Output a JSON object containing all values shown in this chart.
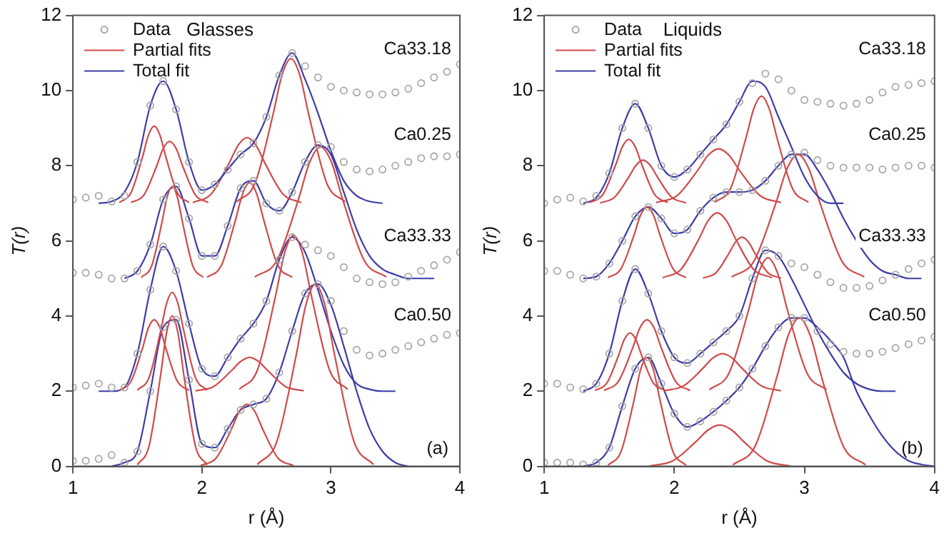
{
  "chart_data": [
    {
      "type": "line",
      "title": "Glasses",
      "xlabel": "r (Å)",
      "ylabel": "T(r)",
      "xlim": [
        1,
        4
      ],
      "xticks": [
        1,
        2,
        3,
        4
      ],
      "ylim": [
        0,
        12
      ],
      "yticks": [
        0,
        2,
        4,
        6,
        8,
        10,
        12
      ],
      "legend": "top left",
      "line_style": "solid",
      "annotations": [
        "Ca33.18",
        "Ca0.25",
        "Ca33.33",
        "Ca0.50",
        "(a)"
      ],
      "x": [
        1,
        1.1,
        1.2,
        1.3,
        1.4,
        1.5,
        1.6,
        1.7,
        1.8,
        1.9,
        2,
        2.1,
        2.2,
        2.3,
        2.4,
        2.5,
        2.6,
        2.7,
        2.8,
        2.9,
        3,
        3.1,
        3.2,
        3.3,
        3.4,
        3.5,
        3.6,
        3.7,
        3.8,
        3.9,
        4
      ],
      "series": [
        {
          "type": "scatter",
          "name": "Data",
          "color": "#a8a8a8",
          "marker": "circle",
          "values": [
            7.1,
            7.15,
            7.2,
            7.05,
            7.2,
            8.1,
            9.6,
            10.25,
            9.5,
            8.1,
            7.35,
            7.5,
            7.9,
            8.3,
            8.6,
            9.3,
            10.4,
            11.0,
            10.65,
            10.35,
            10.1,
            10.0,
            9.95,
            9.9,
            9.9,
            9.95,
            10.05,
            10.2,
            10.35,
            10.5,
            10.7
          ]
        },
        {
          "type": "scatter",
          "color": "#a8a8a8",
          "marker": "circle",
          "values": [
            5.15,
            5.15,
            5.1,
            5.0,
            5.0,
            5.2,
            5.9,
            7.1,
            7.45,
            6.6,
            5.6,
            5.6,
            6.4,
            7.4,
            7.6,
            7.0,
            6.8,
            7.3,
            8.1,
            8.55,
            8.5,
            8.1,
            7.9,
            7.85,
            7.9,
            8.0,
            8.1,
            8.2,
            8.25,
            8.25,
            8.3
          ]
        },
        {
          "type": "scatter",
          "color": "#a8a8a8",
          "marker": "circle",
          "values": [
            2.1,
            2.15,
            2.2,
            2.1,
            2.1,
            3.0,
            4.7,
            5.85,
            5.2,
            3.8,
            2.6,
            2.4,
            2.9,
            3.4,
            3.8,
            4.4,
            5.5,
            6.1,
            5.9,
            5.75,
            5.6,
            5.3,
            5.0,
            4.9,
            4.85,
            4.9,
            5.05,
            5.2,
            5.35,
            5.5,
            5.7
          ]
        },
        {
          "type": "scatter",
          "color": "#a8a8a8",
          "marker": "circle",
          "values": [
            0.15,
            0.15,
            0.2,
            0.3,
            0.1,
            0.4,
            2.0,
            3.7,
            3.9,
            2.3,
            0.6,
            0.5,
            1.0,
            1.5,
            1.65,
            1.8,
            2.5,
            3.6,
            4.6,
            4.85,
            4.4,
            3.6,
            3.1,
            2.95,
            3.0,
            3.1,
            3.2,
            3.3,
            3.4,
            3.5,
            3.55
          ]
        },
        {
          "type": "line",
          "name": "Partial fits",
          "color": "#d04a4a",
          "x": [
            1.36,
            1.45,
            1.54,
            1.585,
            1.63,
            1.675,
            1.72,
            1.81,
            1.9
          ],
          "values": [
            7.02,
            7.28,
            8.24,
            8.81,
            9.05,
            8.81,
            8.24,
            7.28,
            7.02
          ]
        },
        {
          "type": "line",
          "color": "#d04a4a",
          "x": [
            1.45,
            1.55,
            1.65,
            1.7,
            1.75,
            1.8,
            1.85,
            1.95,
            2.05
          ],
          "values": [
            7.02,
            7.22,
            8.0,
            8.46,
            8.65,
            8.46,
            8.0,
            7.22,
            7.02
          ]
        },
        {
          "type": "line",
          "color": "#d04a4a",
          "x": [
            1.93,
            2.07,
            2.21,
            2.28,
            2.35,
            2.42,
            2.49,
            2.63,
            2.77
          ],
          "values": [
            7.02,
            7.24,
            8.06,
            8.54,
            8.75,
            8.54,
            8.06,
            7.24,
            7.02
          ]
        },
        {
          "type": "line",
          "color": "#d04a4a",
          "x": [
            2.27,
            2.41,
            2.55,
            2.62,
            2.69,
            2.76,
            2.83,
            2.97,
            3.11
          ],
          "values": [
            7.04,
            7.52,
            9.34,
            10.4,
            10.85,
            10.4,
            9.34,
            7.52,
            7.04
          ]
        },
        {
          "type": "line",
          "color": "#d04a4a",
          "x": [
            1.53,
            1.61,
            1.69,
            1.73,
            1.77,
            1.81,
            1.85,
            1.93,
            2.01
          ],
          "values": [
            5.03,
            5.33,
            6.49,
            7.16,
            7.45,
            7.16,
            6.49,
            5.33,
            5.03
          ]
        },
        {
          "type": "line",
          "color": "#d04a4a",
          "x": [
            2.04,
            2.15,
            2.26,
            2.315,
            2.37,
            2.425,
            2.48,
            2.59,
            2.7
          ],
          "values": [
            5.03,
            5.34,
            6.55,
            7.25,
            7.55,
            7.25,
            6.55,
            5.34,
            5.03
          ]
        },
        {
          "type": "line",
          "color": "#d04a4a",
          "x": [
            2.41,
            2.58,
            2.75,
            2.835,
            2.92,
            3.005,
            3.09,
            3.26,
            3.43
          ],
          "values": [
            5.04,
            5.47,
            7.12,
            8.09,
            8.5,
            8.09,
            7.12,
            5.47,
            5.04
          ]
        },
        {
          "type": "line",
          "color": "#d04a4a",
          "x": [
            1.36,
            1.45,
            1.54,
            1.585,
            1.63,
            1.675,
            1.72,
            1.81,
            1.9
          ],
          "values": [
            2.02,
            2.26,
            3.15,
            3.68,
            3.9,
            3.68,
            3.15,
            2.26,
            2.02
          ]
        },
        {
          "type": "line",
          "color": "#d04a4a",
          "x": [
            1.5,
            1.59,
            1.68,
            1.725,
            1.77,
            1.815,
            1.86,
            1.95,
            2.04
          ],
          "values": [
            2.03,
            2.36,
            3.6,
            4.32,
            4.63,
            4.32,
            3.6,
            2.36,
            2.03
          ]
        },
        {
          "type": "line",
          "color": "#d04a4a",
          "x": [
            1.95,
            2.09,
            2.23,
            2.3,
            2.37,
            2.44,
            2.51,
            2.65,
            2.79
          ],
          "values": [
            2.01,
            2.12,
            2.55,
            2.79,
            2.9,
            2.79,
            2.55,
            2.12,
            2.01
          ]
        },
        {
          "type": "line",
          "color": "#d04a4a",
          "x": [
            2.29,
            2.43,
            2.57,
            2.64,
            2.71,
            2.78,
            2.85,
            2.99,
            3.13
          ],
          "values": [
            2.05,
            2.56,
            4.52,
            5.66,
            6.15,
            5.66,
            4.52,
            2.56,
            2.05
          ]
        },
        {
          "type": "line",
          "color": "#d04a4a",
          "x": [
            1.5,
            1.59,
            1.68,
            1.725,
            1.77,
            1.815,
            1.86,
            1.95,
            2.04
          ],
          "values": [
            0.04,
            0.54,
            2.43,
            3.53,
            4.0,
            3.53,
            2.43,
            0.54,
            0.04
          ]
        },
        {
          "type": "line",
          "color": "#d04a4a",
          "x": [
            1.99,
            2.11,
            2.23,
            2.29,
            2.35,
            2.41,
            2.47,
            2.59,
            2.71
          ],
          "values": [
            0.02,
            0.22,
            1.0,
            1.46,
            1.65,
            1.46,
            1.0,
            0.22,
            0.02
          ]
        },
        {
          "type": "line",
          "color": "#d04a4a",
          "x": [
            2.43,
            2.58,
            2.73,
            2.805,
            2.88,
            2.955,
            3.03,
            3.18,
            3.33
          ],
          "values": [
            0.05,
            0.65,
            2.94,
            4.28,
            4.85,
            4.28,
            2.94,
            0.65,
            0.05
          ]
        },
        {
          "type": "line",
          "name": "Total fit",
          "color": "#3c3ca8",
          "x": [
            1.2,
            1.3,
            1.4,
            1.5,
            1.6,
            1.7,
            1.8,
            1.9,
            2,
            2.1,
            2.2,
            2.3,
            2.4,
            2.5,
            2.6,
            2.7,
            2.8,
            2.9,
            3,
            3.1,
            3.2,
            3.3,
            3.4
          ],
          "values": [
            7.0,
            7.05,
            7.3,
            8.1,
            9.6,
            10.25,
            9.5,
            8.1,
            7.35,
            7.5,
            7.9,
            8.3,
            8.6,
            9.3,
            10.4,
            11.0,
            10.3,
            9.4,
            8.4,
            7.6,
            7.2,
            7.05,
            7.0
          ]
        },
        {
          "type": "line",
          "color": "#3c3ca8",
          "x": [
            1.4,
            1.5,
            1.6,
            1.7,
            1.8,
            1.9,
            2,
            2.1,
            2.2,
            2.3,
            2.4,
            2.5,
            2.6,
            2.7,
            2.8,
            2.9,
            3,
            3.1,
            3.2,
            3.3,
            3.4,
            3.5,
            3.6,
            3.7,
            3.8
          ],
          "values": [
            5.0,
            5.2,
            5.9,
            7.1,
            7.45,
            6.6,
            5.6,
            5.6,
            6.4,
            7.4,
            7.6,
            7.0,
            6.8,
            7.3,
            8.1,
            8.55,
            8.3,
            7.3,
            6.3,
            5.6,
            5.25,
            5.1,
            5.0,
            5.0,
            5.0
          ]
        },
        {
          "type": "line",
          "color": "#3c3ca8",
          "x": [
            1.2,
            1.3,
            1.4,
            1.5,
            1.6,
            1.7,
            1.8,
            1.9,
            2,
            2.1,
            2.2,
            2.3,
            2.4,
            2.5,
            2.6,
            2.7,
            2.8,
            2.9,
            3,
            3.1,
            3.2,
            3.3,
            3.4,
            3.5
          ],
          "values": [
            2.0,
            2.0,
            2.1,
            3.0,
            4.7,
            5.85,
            5.2,
            3.8,
            2.6,
            2.4,
            2.9,
            3.4,
            3.8,
            4.4,
            5.5,
            6.1,
            5.7,
            4.7,
            3.6,
            2.7,
            2.2,
            2.05,
            2.0,
            2.0
          ]
        },
        {
          "type": "line",
          "color": "#3c3ca8",
          "x": [
            1.3,
            1.4,
            1.5,
            1.6,
            1.7,
            1.8,
            1.9,
            2,
            2.1,
            2.2,
            2.3,
            2.4,
            2.5,
            2.6,
            2.7,
            2.8,
            2.9,
            3,
            3.1,
            3.2,
            3.3,
            3.4,
            3.5,
            3.6
          ],
          "values": [
            0.0,
            0.1,
            0.4,
            2.0,
            3.7,
            3.9,
            2.3,
            0.6,
            0.5,
            1.0,
            1.5,
            1.65,
            1.8,
            2.5,
            3.6,
            4.6,
            4.85,
            4.3,
            3.2,
            2.0,
            1.0,
            0.4,
            0.1,
            0.0
          ]
        }
      ]
    },
    {
      "type": "line",
      "title": "Liquids",
      "xlabel": "r (Å)",
      "ylabel": "T(r)",
      "xlim": [
        1,
        4
      ],
      "xticks": [
        1,
        2,
        3,
        4
      ],
      "ylim": [
        0,
        12
      ],
      "yticks": [
        0,
        2,
        4,
        6,
        8,
        10,
        12
      ],
      "legend": "top left",
      "line_style": "solid",
      "annotations": [
        "Ca33.18",
        "Ca0.25",
        "Ca33.33",
        "Ca0.50",
        "(b)"
      ],
      "x": [
        1,
        1.1,
        1.2,
        1.3,
        1.4,
        1.5,
        1.6,
        1.7,
        1.8,
        1.9,
        2,
        2.1,
        2.2,
        2.3,
        2.4,
        2.5,
        2.6,
        2.7,
        2.8,
        2.9,
        3,
        3.1,
        3.2,
        3.3,
        3.4,
        3.5,
        3.6,
        3.7,
        3.8,
        3.9,
        4
      ],
      "series": [
        {
          "type": "scatter",
          "name": "Data",
          "color": "#a8a8a8",
          "marker": "circle",
          "values": [
            7.0,
            7.1,
            7.15,
            7.05,
            7.2,
            7.8,
            9.0,
            9.65,
            9.0,
            8.0,
            7.7,
            7.9,
            8.3,
            8.7,
            9.1,
            9.7,
            10.2,
            10.45,
            10.3,
            10.0,
            9.75,
            9.7,
            9.65,
            9.6,
            9.65,
            9.75,
            9.95,
            10.1,
            10.15,
            10.2,
            10.25
          ]
        },
        {
          "type": "scatter",
          "color": "#a8a8a8",
          "marker": "circle",
          "values": [
            5.2,
            5.2,
            5.1,
            5.0,
            5.05,
            5.4,
            6.0,
            6.65,
            6.9,
            6.6,
            6.2,
            6.3,
            6.8,
            7.15,
            7.3,
            7.3,
            7.35,
            7.6,
            8.0,
            8.3,
            8.35,
            8.15,
            8.0,
            7.95,
            7.95,
            7.95,
            7.9,
            7.95,
            8.0,
            8.0,
            7.95
          ]
        },
        {
          "type": "scatter",
          "color": "#a8a8a8",
          "marker": "circle",
          "values": [
            2.2,
            2.2,
            2.1,
            2.05,
            2.2,
            3.0,
            4.4,
            5.25,
            4.6,
            3.6,
            2.9,
            2.75,
            3.0,
            3.3,
            3.6,
            4.0,
            5.0,
            5.75,
            5.6,
            5.4,
            5.3,
            5.1,
            4.9,
            4.75,
            4.75,
            4.8,
            4.95,
            5.1,
            5.25,
            5.4,
            5.5
          ]
        },
        {
          "type": "scatter",
          "color": "#a8a8a8",
          "marker": "circle",
          "values": [
            0.1,
            0.1,
            0.1,
            0.05,
            0.1,
            0.5,
            1.6,
            2.6,
            2.9,
            2.2,
            1.4,
            1.05,
            1.2,
            1.45,
            1.75,
            2.1,
            2.6,
            3.2,
            3.7,
            3.95,
            3.95,
            3.6,
            3.25,
            3.05,
            3.0,
            3.0,
            3.05,
            3.15,
            3.25,
            3.35,
            3.45
          ]
        },
        {
          "type": "line",
          "name": "Partial fits",
          "color": "#d04a4a",
          "x": [
            1.35,
            1.45,
            1.55,
            1.6,
            1.65,
            1.7,
            1.75,
            1.85,
            1.95
          ],
          "values": [
            7.02,
            7.23,
            8.03,
            8.5,
            8.7,
            8.5,
            8.03,
            7.23,
            7.02
          ]
        },
        {
          "type": "line",
          "color": "#d04a4a",
          "x": [
            1.43,
            1.54,
            1.65,
            1.705,
            1.76,
            1.815,
            1.87,
            1.98,
            2.09
          ],
          "values": [
            7.01,
            7.16,
            7.7,
            8.01,
            8.15,
            8.01,
            7.7,
            7.16,
            7.01
          ]
        },
        {
          "type": "line",
          "color": "#d04a4a",
          "x": [
            1.86,
            2.02,
            2.18,
            2.26,
            2.34,
            2.42,
            2.5,
            2.66,
            2.82
          ],
          "values": [
            7.02,
            7.2,
            7.88,
            8.28,
            8.45,
            8.28,
            7.88,
            7.2,
            7.02
          ]
        },
        {
          "type": "line",
          "color": "#d04a4a",
          "x": [
            2.31,
            2.43,
            2.55,
            2.61,
            2.67,
            2.73,
            2.79,
            2.91,
            3.03
          ],
          "values": [
            7.03,
            7.38,
            8.73,
            9.51,
            9.85,
            9.51,
            8.73,
            7.38,
            7.03
          ]
        },
        {
          "type": "line",
          "color": "#d04a4a",
          "x": [
            1.49,
            1.59,
            1.69,
            1.74,
            1.79,
            1.84,
            1.89,
            1.99,
            2.09
          ],
          "values": [
            5.02,
            5.26,
            6.15,
            6.68,
            6.9,
            6.68,
            6.15,
            5.26,
            5.02
          ]
        },
        {
          "type": "line",
          "color": "#d04a4a",
          "x": [
            1.91,
            2.05,
            2.19,
            2.26,
            2.33,
            2.4,
            2.47,
            2.61,
            2.75
          ],
          "values": [
            5.02,
            5.24,
            6.06,
            6.54,
            6.75,
            6.54,
            6.06,
            5.24,
            5.02
          ]
        },
        {
          "type": "line",
          "color": "#d04a4a",
          "x": [
            2.22,
            2.32,
            2.42,
            2.47,
            2.52,
            2.57,
            2.62,
            2.72,
            2.82
          ],
          "values": [
            5.01,
            5.15,
            5.67,
            5.97,
            6.1,
            5.97,
            5.67,
            5.15,
            5.01
          ]
        },
        {
          "type": "line",
          "color": "#d04a4a",
          "x": [
            2.44,
            2.61,
            2.78,
            2.865,
            2.95,
            3.035,
            3.12,
            3.29,
            3.46
          ],
          "values": [
            5.04,
            5.45,
            7.0,
            7.91,
            8.3,
            7.91,
            7.0,
            5.45,
            5.04
          ]
        },
        {
          "type": "line",
          "color": "#d04a4a",
          "x": [
            1.39,
            1.48,
            1.57,
            1.615,
            1.66,
            1.705,
            1.75,
            1.84,
            1.93
          ],
          "values": [
            2.02,
            2.21,
            2.94,
            3.37,
            3.55,
            3.37,
            2.94,
            2.21,
            2.02
          ]
        },
        {
          "type": "line",
          "color": "#d04a4a",
          "x": [
            1.46,
            1.57,
            1.68,
            1.735,
            1.79,
            1.845,
            1.9,
            2.01,
            2.12
          ],
          "values": [
            2.02,
            2.26,
            3.15,
            3.68,
            3.9,
            3.68,
            3.15,
            2.26,
            2.02
          ]
        },
        {
          "type": "line",
          "color": "#d04a4a",
          "x": [
            1.92,
            2.07,
            2.22,
            2.295,
            2.37,
            2.445,
            2.52,
            2.67,
            2.82
          ],
          "values": [
            2.01,
            2.14,
            2.61,
            2.88,
            3.0,
            2.88,
            2.61,
            2.14,
            2.01
          ]
        },
        {
          "type": "line",
          "color": "#d04a4a",
          "x": [
            2.27,
            2.42,
            2.57,
            2.645,
            2.72,
            2.795,
            2.87,
            3.02,
            3.17
          ],
          "values": [
            2.04,
            2.48,
            4.15,
            5.13,
            5.55,
            5.13,
            4.15,
            2.48,
            2.04
          ]
        },
        {
          "type": "line",
          "color": "#d04a4a",
          "x": [
            1.49,
            1.59,
            1.69,
            1.74,
            1.79,
            1.84,
            1.89,
            1.99,
            2.09
          ],
          "values": [
            0.03,
            0.39,
            1.76,
            2.56,
            2.9,
            2.56,
            1.76,
            0.39,
            0.03
          ]
        },
        {
          "type": "line",
          "color": "#d04a4a",
          "x": [
            1.81,
            1.99,
            2.17,
            2.26,
            2.35,
            2.44,
            2.53,
            2.71,
            2.89
          ],
          "values": [
            0.01,
            0.15,
            0.67,
            0.97,
            1.1,
            0.97,
            0.67,
            0.15,
            0.01
          ]
        },
        {
          "type": "line",
          "color": "#d04a4a",
          "x": [
            2.45,
            2.62,
            2.79,
            2.875,
            2.96,
            3.045,
            3.13,
            3.3,
            3.47
          ],
          "values": [
            0.04,
            0.53,
            2.4,
            3.48,
            3.95,
            3.48,
            2.4,
            0.53,
            0.04
          ]
        },
        {
          "type": "line",
          "name": "Total fit",
          "color": "#3c3ca8",
          "x": [
            1.3,
            1.4,
            1.5,
            1.6,
            1.7,
            1.8,
            1.9,
            2,
            2.1,
            2.2,
            2.3,
            2.4,
            2.5,
            2.6,
            2.7,
            2.8,
            2.9,
            3,
            3.1,
            3.2,
            3.3
          ],
          "values": [
            7.0,
            7.15,
            7.8,
            9.0,
            9.65,
            9.0,
            8.0,
            7.7,
            7.9,
            8.3,
            8.7,
            9.1,
            9.7,
            10.25,
            10.1,
            9.3,
            8.5,
            7.7,
            7.2,
            7.0,
            7.0
          ]
        },
        {
          "type": "line",
          "color": "#3c3ca8",
          "x": [
            1.3,
            1.4,
            1.5,
            1.6,
            1.7,
            1.8,
            1.9,
            2,
            2.1,
            2.2,
            2.3,
            2.4,
            2.5,
            2.6,
            2.7,
            2.8,
            2.9,
            3,
            3.1,
            3.2,
            3.3,
            3.4,
            3.5,
            3.6,
            3.7,
            3.8,
            3.9
          ],
          "values": [
            5.0,
            5.05,
            5.4,
            6.0,
            6.65,
            6.9,
            6.6,
            6.2,
            6.3,
            6.8,
            7.15,
            7.3,
            7.3,
            7.35,
            7.6,
            8.0,
            8.3,
            8.3,
            7.9,
            7.3,
            6.6,
            6.0,
            5.5,
            5.2,
            5.1,
            5.0,
            5.0
          ]
        },
        {
          "type": "line",
          "color": "#3c3ca8",
          "x": [
            1.3,
            1.4,
            1.5,
            1.6,
            1.7,
            1.8,
            1.9,
            2,
            2.1,
            2.2,
            2.3,
            2.4,
            2.5,
            2.6,
            2.7,
            2.8,
            2.9,
            3,
            3.1,
            3.2,
            3.3,
            3.4,
            3.5,
            3.6,
            3.7
          ],
          "values": [
            2.0,
            2.2,
            3.0,
            4.4,
            5.25,
            4.6,
            3.6,
            2.9,
            2.75,
            3.0,
            3.3,
            3.6,
            4.0,
            5.0,
            5.75,
            5.6,
            5.0,
            4.3,
            3.6,
            3.0,
            2.5,
            2.2,
            2.05,
            2.0,
            2.0
          ]
        },
        {
          "type": "line",
          "color": "#3c3ca8",
          "x": [
            1.3,
            1.4,
            1.5,
            1.6,
            1.7,
            1.8,
            1.9,
            2,
            2.1,
            2.2,
            2.3,
            2.4,
            2.5,
            2.6,
            2.7,
            2.8,
            2.9,
            3,
            3.1,
            3.2,
            3.3,
            3.4,
            3.5,
            3.6,
            3.7,
            3.8,
            3.9,
            4
          ],
          "values": [
            0.0,
            0.1,
            0.5,
            1.6,
            2.6,
            2.9,
            2.2,
            1.4,
            1.05,
            1.2,
            1.45,
            1.75,
            2.1,
            2.6,
            3.2,
            3.7,
            3.95,
            3.95,
            3.7,
            3.35,
            2.9,
            2.0,
            1.35,
            0.8,
            0.4,
            0.15,
            0.05,
            0.0
          ]
        }
      ]
    }
  ]
}
